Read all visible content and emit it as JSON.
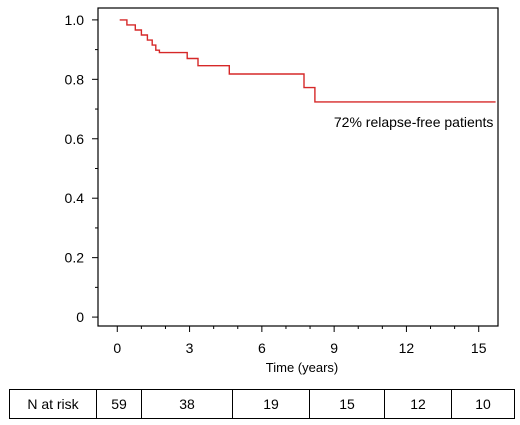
{
  "chart_data": {
    "type": "line",
    "title": "",
    "xlabel": "Time (years)",
    "ylabel": "",
    "xlim": [
      -0.8,
      15.8
    ],
    "ylim": [
      -0.03,
      1.04
    ],
    "x_ticks": [
      0,
      3,
      6,
      9,
      12,
      15
    ],
    "y_ticks": [
      0,
      0.2,
      0.4,
      0.6,
      0.8,
      1.0
    ],
    "x_tick_labels": [
      "0",
      "3",
      "6",
      "9",
      "12",
      "15"
    ],
    "y_tick_labels": [
      "0",
      "0.2",
      "0.4",
      "0.6",
      "0.8",
      "1.0"
    ],
    "grid": false,
    "line_color": "#d62828",
    "series": [
      {
        "step": true,
        "x": [
          0.1,
          0.4,
          0.75,
          1.0,
          1.25,
          1.45,
          1.6,
          1.75,
          2.9,
          3.35,
          4.65,
          7.75,
          8.2,
          15.7
        ],
        "y": [
          1.0,
          0.983,
          0.966,
          0.949,
          0.932,
          0.915,
          0.898,
          0.89,
          0.87,
          0.846,
          0.818,
          0.772,
          0.724,
          0.724
        ]
      }
    ],
    "annotations": [
      {
        "text": "72% relapse-free patients",
        "x": 12.3,
        "y": 0.64
      }
    ]
  },
  "risk_table": {
    "label": "N at risk",
    "values": [
      "59",
      "38",
      "19",
      "15",
      "12",
      "10"
    ]
  }
}
